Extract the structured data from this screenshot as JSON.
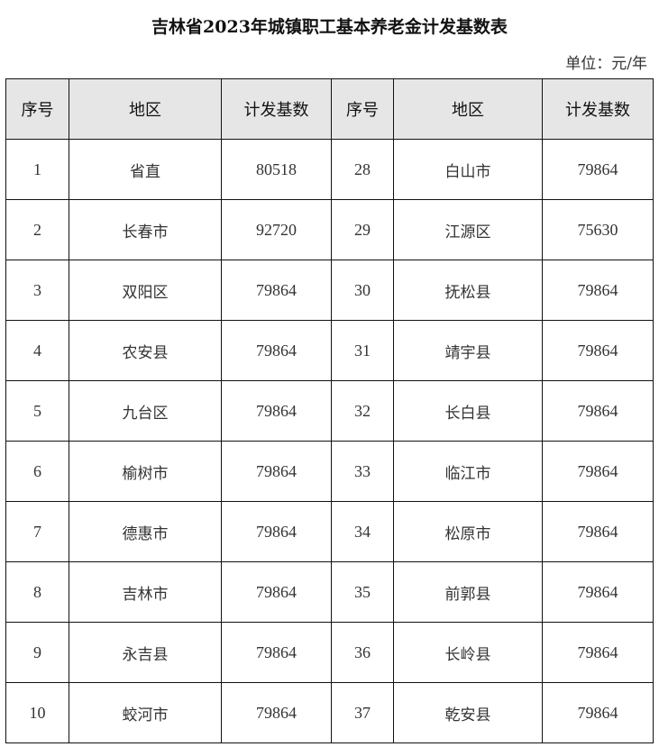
{
  "title": "吉林省2023年城镇职工基本养老金计发基数表",
  "unit": "单位：元/年",
  "headers": [
    "序号",
    "地区",
    "计发基数",
    "序号",
    "地区",
    "计发基数"
  ],
  "rows": [
    {
      "no1": "1",
      "region1": "省直",
      "base1": "80518",
      "no2": "28",
      "region2": "白山市",
      "base2": "79864"
    },
    {
      "no1": "2",
      "region1": "长春市",
      "base1": "92720",
      "no2": "29",
      "region2": "江源区",
      "base2": "75630"
    },
    {
      "no1": "3",
      "region1": "双阳区",
      "base1": "79864",
      "no2": "30",
      "region2": "抚松县",
      "base2": "79864"
    },
    {
      "no1": "4",
      "region1": "农安县",
      "base1": "79864",
      "no2": "31",
      "region2": "靖宇县",
      "base2": "79864"
    },
    {
      "no1": "5",
      "region1": "九台区",
      "base1": "79864",
      "no2": "32",
      "region2": "长白县",
      "base2": "79864"
    },
    {
      "no1": "6",
      "region1": "榆树市",
      "base1": "79864",
      "no2": "33",
      "region2": "临江市",
      "base2": "79864"
    },
    {
      "no1": "7",
      "region1": "德惠市",
      "base1": "79864",
      "no2": "34",
      "region2": "松原市",
      "base2": "79864"
    },
    {
      "no1": "8",
      "region1": "吉林市",
      "base1": "79864",
      "no2": "35",
      "region2": "前郭县",
      "base2": "79864"
    },
    {
      "no1": "9",
      "region1": "永吉县",
      "base1": "79864",
      "no2": "36",
      "region2": "长岭县",
      "base2": "79864"
    },
    {
      "no1": "10",
      "region1": "蛟河市",
      "base1": "79864",
      "no2": "37",
      "region2": "乾安县",
      "base2": "79864"
    }
  ]
}
